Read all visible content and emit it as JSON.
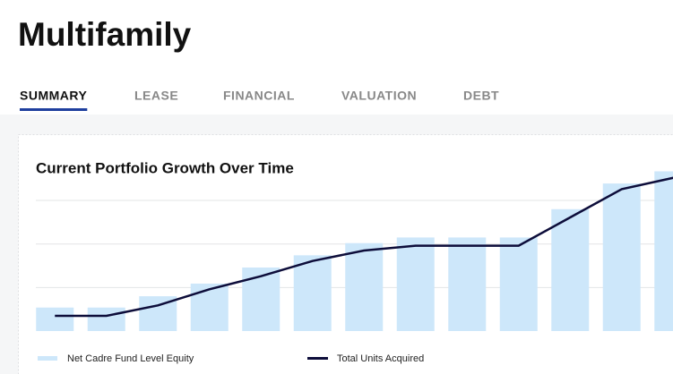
{
  "header": {
    "title": "Multifamily"
  },
  "tabs": [
    "SUMMARY",
    "LEASE",
    "FINANCIAL",
    "VALUATION",
    "DEBT"
  ],
  "chart_data": {
    "type": "bar_line",
    "title": "Current Portfolio Growth Over Time",
    "categories": [
      null,
      null,
      null,
      null,
      null,
      null,
      null,
      null,
      null,
      null,
      null,
      null,
      null
    ],
    "series": [
      {
        "name": "Net Cadre Fund Level Equity",
        "color": "#cde7fa",
        "type": "bar",
        "values": [
          0.54,
          0.54,
          0.8,
          1.09,
          1.46,
          1.74,
          2.02,
          2.15,
          2.15,
          2.15,
          2.8,
          3.39,
          3.67
        ]
      },
      {
        "name": "Total Units Acquired",
        "color": "#0d0d3a",
        "type": "line",
        "values": [
          0.35,
          0.35,
          0.59,
          0.96,
          1.26,
          1.61,
          1.85,
          1.96,
          1.96,
          1.96,
          2.61,
          3.26,
          3.52
        ]
      }
    ],
    "ylim": [
      0,
      3.7
    ],
    "grid": true
  }
}
